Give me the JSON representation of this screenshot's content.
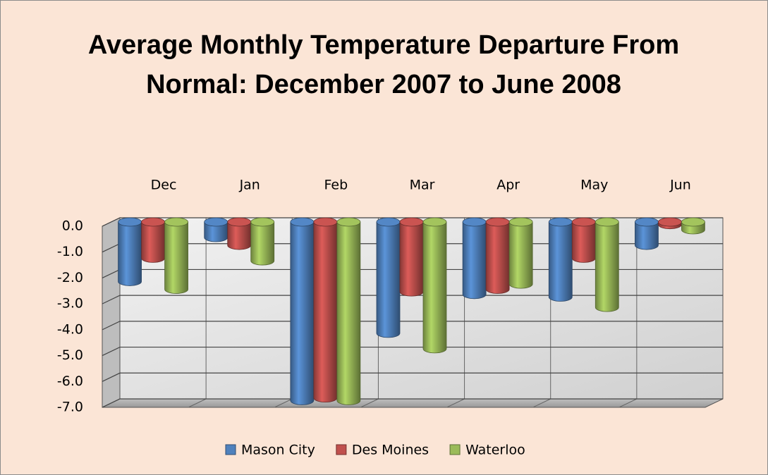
{
  "chart_data": {
    "type": "bar3d",
    "title": "Average Monthly Temperature Departure From Normal: December 2007 to June 2008",
    "categories": [
      "Dec",
      "Jan",
      "Feb",
      "Mar",
      "Apr",
      "May",
      "Jun"
    ],
    "series": [
      {
        "name": "Mason City",
        "color": "#4f81bd",
        "values": [
          -2.3,
          -0.6,
          -6.9,
          -4.3,
          -2.8,
          -2.9,
          -0.9
        ]
      },
      {
        "name": "Des Moines",
        "color": "#c0504d",
        "values": [
          -1.4,
          -0.9,
          -6.8,
          -2.7,
          -2.6,
          -1.4,
          -0.1
        ]
      },
      {
        "name": "Waterloo",
        "color": "#9bbb59",
        "values": [
          -2.6,
          -1.5,
          -6.9,
          -4.9,
          -2.4,
          -3.3,
          -0.3
        ]
      }
    ],
    "ylim": [
      -7,
      0
    ],
    "yticks": [
      {
        "value": 0,
        "label": "0.0"
      },
      {
        "value": -1,
        "label": "-1.0"
      },
      {
        "value": -2,
        "label": "-2.0"
      },
      {
        "value": -3,
        "label": "-3.0"
      },
      {
        "value": -4,
        "label": "-4.0"
      },
      {
        "value": -5,
        "label": "-5.0"
      },
      {
        "value": -6,
        "label": "-6.0"
      },
      {
        "value": -7,
        "label": "-7.0"
      }
    ],
    "grid": true,
    "legend": "bottom"
  }
}
